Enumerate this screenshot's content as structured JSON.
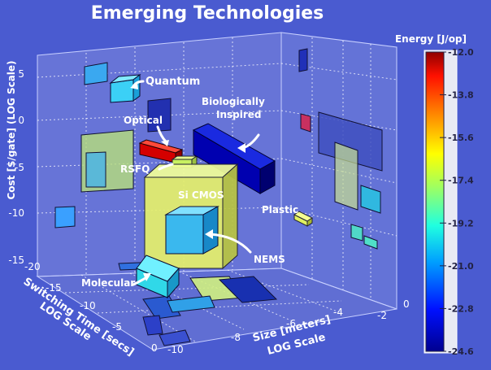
{
  "chart_data": {
    "type": "3d-bar",
    "title": "Emerging Technologies",
    "axes": {
      "z": {
        "label": "Cost [$/gate] (LOG Scale)",
        "ticks": [
          "5",
          "0",
          "-5",
          "-10",
          "-15"
        ],
        "range": [
          -15,
          5
        ]
      },
      "y": {
        "label_line1": "Switching Time [secs]",
        "label_line2": "LOG Scale",
        "ticks": [
          "-20",
          "-15",
          "-10",
          "-5",
          "0"
        ],
        "range": [
          -20,
          0
        ]
      },
      "x": {
        "label_line1": "Size [meters]",
        "label_line2": "LOG Scale",
        "ticks": [
          "-10",
          "-8",
          "-6",
          "-4",
          "-2",
          "0"
        ],
        "range": [
          -10,
          0
        ]
      }
    },
    "colorbar": {
      "label": "Energy [J/op]",
      "ticks": [
        "-12.0",
        "-13.8",
        "-15.6",
        "-17.4",
        "-19.2",
        "-21.0",
        "-22.8",
        "-24.6"
      ],
      "range": [
        -24.6,
        -12.0
      ]
    },
    "technologies": [
      {
        "name": "Quantum",
        "energy": -21.5
      },
      {
        "name": "Optical",
        "energy": -12.0
      },
      {
        "name": "RSFQ",
        "energy": -17.8
      },
      {
        "name": "Biologically Inspired",
        "energy": -24.2
      },
      {
        "name": "Si CMOS",
        "energy": -17.4
      },
      {
        "name": "Plastic",
        "energy": -17.4
      },
      {
        "name": "NEMS",
        "energy": -20.5
      },
      {
        "name": "Molecular",
        "energy": -20.0
      }
    ],
    "grid": true,
    "legend": "right"
  }
}
